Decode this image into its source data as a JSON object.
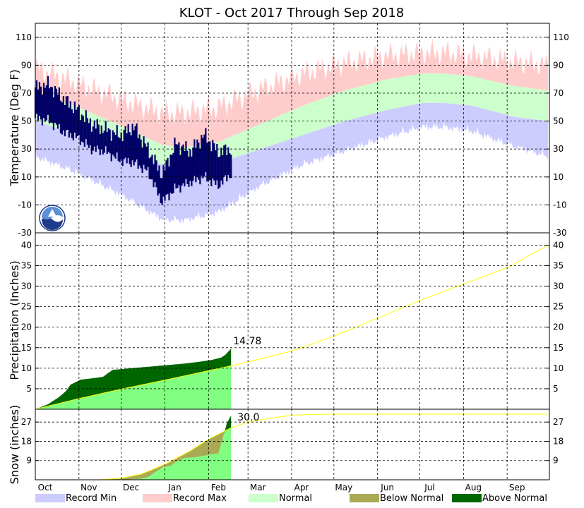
{
  "chart_data": {
    "title": "KLOT - Oct 2017 Through Sep 2018",
    "x_axis": {
      "months": [
        "Oct",
        "Nov",
        "Dec",
        "Jan",
        "Feb",
        "Mar",
        "Apr",
        "May",
        "Jun",
        "Jul",
        "Aug",
        "Sep"
      ],
      "days_per_month": [
        31,
        30,
        31,
        31,
        28,
        31,
        30,
        31,
        30,
        31,
        31,
        30
      ],
      "observed_through_day": 139
    },
    "legend": [
      {
        "label": "Record Min",
        "color": "#ccccff"
      },
      {
        "label": "Record Max",
        "color": "#ffcccc"
      },
      {
        "label": "Normal",
        "color": "#ccffcc"
      },
      {
        "label": "Below Normal",
        "color": "#aaaa55"
      },
      {
        "label": "Above Normal",
        "color": "#006600"
      }
    ],
    "colors": {
      "record_min": "#ccccff",
      "record_max": "#ffcccc",
      "normal": "#ccffcc",
      "observed_temp": "#000066",
      "normal_line": "#ffff00",
      "precip_fill": "#80ff80",
      "above_normal": "#006600",
      "below_normal": "#aaaa55"
    },
    "panels": [
      {
        "id": "temperature",
        "type": "area",
        "ylabel": "Temperature (Deg F)",
        "ylim": [
          -30,
          120
        ],
        "ticks": [
          -30,
          -10,
          10,
          30,
          50,
          70,
          90,
          110
        ],
        "normal_high_knots": [
          [
            0,
            71
          ],
          [
            30,
            60
          ],
          [
            60,
            47
          ],
          [
            90,
            33
          ],
          [
            105,
            31
          ],
          [
            130,
            35
          ],
          [
            160,
            48
          ],
          [
            190,
            61
          ],
          [
            220,
            72
          ],
          [
            250,
            80
          ],
          [
            275,
            84
          ],
          [
            290,
            84
          ],
          [
            310,
            82
          ],
          [
            340,
            75
          ],
          [
            364,
            72
          ]
        ],
        "normal_low_knots": [
          [
            0,
            50
          ],
          [
            30,
            40
          ],
          [
            60,
            29
          ],
          [
            90,
            19
          ],
          [
            105,
            17
          ],
          [
            130,
            20
          ],
          [
            160,
            30
          ],
          [
            190,
            40
          ],
          [
            220,
            50
          ],
          [
            250,
            58
          ],
          [
            275,
            63
          ],
          [
            290,
            63
          ],
          [
            310,
            61
          ],
          [
            340,
            53
          ],
          [
            364,
            50
          ]
        ],
        "record_high_knots": [
          [
            0,
            88
          ],
          [
            30,
            77
          ],
          [
            60,
            66
          ],
          [
            90,
            56
          ],
          [
            105,
            56
          ],
          [
            130,
            60
          ],
          [
            160,
            73
          ],
          [
            190,
            84
          ],
          [
            220,
            92
          ],
          [
            250,
            97
          ],
          [
            275,
            99
          ],
          [
            290,
            99
          ],
          [
            310,
            97
          ],
          [
            340,
            93
          ],
          [
            364,
            90
          ]
        ],
        "record_low_knots": [
          [
            0,
            30
          ],
          [
            30,
            18
          ],
          [
            60,
            3
          ],
          [
            90,
            -15
          ],
          [
            105,
            -16
          ],
          [
            130,
            -10
          ],
          [
            160,
            9
          ],
          [
            190,
            24
          ],
          [
            220,
            34
          ],
          [
            250,
            44
          ],
          [
            275,
            51
          ],
          [
            290,
            51
          ],
          [
            310,
            48
          ],
          [
            340,
            37
          ],
          [
            364,
            30
          ]
        ],
        "observed": [
          {
            "day": 0,
            "lo": 52,
            "hi": 74
          },
          {
            "day": 10,
            "lo": 50,
            "hi": 76
          },
          {
            "day": 20,
            "lo": 42,
            "hi": 66
          },
          {
            "day": 30,
            "lo": 38,
            "hi": 58
          },
          {
            "day": 40,
            "lo": 30,
            "hi": 48
          },
          {
            "day": 50,
            "lo": 28,
            "hi": 44
          },
          {
            "day": 60,
            "lo": 22,
            "hi": 40
          },
          {
            "day": 70,
            "lo": 20,
            "hi": 46
          },
          {
            "day": 80,
            "lo": 14,
            "hi": 30
          },
          {
            "day": 90,
            "lo": -8,
            "hi": 12
          },
          {
            "day": 100,
            "lo": 2,
            "hi": 34
          },
          {
            "day": 110,
            "lo": 6,
            "hi": 28
          },
          {
            "day": 120,
            "lo": 10,
            "hi": 40
          },
          {
            "day": 130,
            "lo": 4,
            "hi": 28
          },
          {
            "day": 139,
            "lo": 12,
            "hi": 30
          }
        ]
      },
      {
        "id": "precipitation",
        "type": "area",
        "ylabel": "Precipitation (Inches)",
        "ylim": [
          0,
          43
        ],
        "ticks": [
          5,
          10,
          15,
          20,
          25,
          30,
          35,
          40
        ],
        "final_label": "14.78",
        "normal_knots": [
          [
            0,
            0
          ],
          [
            31,
            2.6
          ],
          [
            61,
            4.9
          ],
          [
            92,
            7.1
          ],
          [
            123,
            9.4
          ],
          [
            151,
            11.5
          ],
          [
            182,
            14.2
          ],
          [
            212,
            17.8
          ],
          [
            243,
            22.2
          ],
          [
            273,
            26.5
          ],
          [
            304,
            30.5
          ],
          [
            335,
            34.5
          ],
          [
            364,
            40.0
          ]
        ],
        "observed_knots": [
          [
            0,
            0
          ],
          [
            9,
            1.2
          ],
          [
            17,
            3.0
          ],
          [
            22,
            4.5
          ],
          [
            25,
            6.0
          ],
          [
            28,
            6.5
          ],
          [
            32,
            7.2
          ],
          [
            42,
            7.6
          ],
          [
            48,
            7.9
          ],
          [
            55,
            9.6
          ],
          [
            65,
            9.9
          ],
          [
            75,
            10.2
          ],
          [
            85,
            10.5
          ],
          [
            95,
            10.8
          ],
          [
            105,
            11.1
          ],
          [
            115,
            11.5
          ],
          [
            125,
            12.0
          ],
          [
            132,
            12.6
          ],
          [
            135,
            13.3
          ],
          [
            139,
            14.78
          ]
        ]
      },
      {
        "id": "snow",
        "type": "area",
        "ylabel": "Snow (inches)",
        "ylim": [
          0,
          33
        ],
        "ticks": [
          9,
          18,
          27
        ],
        "final_label": "30.0",
        "normal_knots": [
          [
            0,
            0
          ],
          [
            45,
            0
          ],
          [
            60,
            0.6
          ],
          [
            75,
            2.6
          ],
          [
            92,
            7.2
          ],
          [
            110,
            13.5
          ],
          [
            123,
            19.0
          ],
          [
            138,
            24.0
          ],
          [
            151,
            27.0
          ],
          [
            165,
            28.6
          ],
          [
            182,
            30.2
          ],
          [
            200,
            30.6
          ],
          [
            212,
            30.7
          ],
          [
            364,
            30.7
          ]
        ],
        "observed_knots": [
          [
            0,
            0
          ],
          [
            63,
            0
          ],
          [
            68,
            0.2
          ],
          [
            75,
            0.4
          ],
          [
            80,
            1.3
          ],
          [
            85,
            3.5
          ],
          [
            91,
            6.0
          ],
          [
            96,
            6.5
          ],
          [
            100,
            8.5
          ],
          [
            106,
            10.2
          ],
          [
            112,
            10.5
          ],
          [
            118,
            11.0
          ],
          [
            124,
            11.8
          ],
          [
            130,
            12.4
          ],
          [
            134,
            21.5
          ],
          [
            136,
            26.5
          ],
          [
            139,
            30.0
          ]
        ]
      }
    ]
  }
}
